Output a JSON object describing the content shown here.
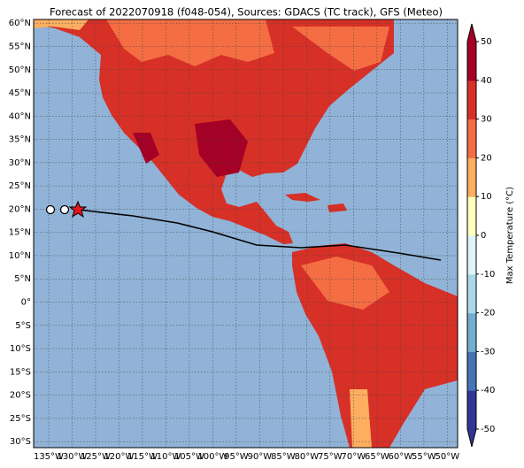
{
  "chart_data": {
    "type": "map",
    "title": "Forecast of 2022070918 (f048-054), Sources: GDACS (TC track), GFS (Meteo)",
    "xlim": [
      -138.2,
      -47.8
    ],
    "ylim": [
      -31.3,
      60.8
    ],
    "xticks": [
      {
        "value": -135,
        "label": "135°W"
      },
      {
        "value": -130,
        "label": "130°W"
      },
      {
        "value": -125,
        "label": "125°W"
      },
      {
        "value": -120,
        "label": "120°W"
      },
      {
        "value": -115,
        "label": "115°W"
      },
      {
        "value": -110,
        "label": "110°W"
      },
      {
        "value": -105,
        "label": "105°W"
      },
      {
        "value": -100,
        "label": "100°W"
      },
      {
        "value": -95,
        "label": "95°W"
      },
      {
        "value": -90,
        "label": "90°W"
      },
      {
        "value": -85,
        "label": "85°W"
      },
      {
        "value": -80,
        "label": "80°W"
      },
      {
        "value": -75,
        "label": "75°W"
      },
      {
        "value": -70,
        "label": "70°W"
      },
      {
        "value": -65,
        "label": "65°W"
      },
      {
        "value": -60,
        "label": "60°W"
      },
      {
        "value": -55,
        "label": "55°W"
      },
      {
        "value": -50,
        "label": "50°W"
      }
    ],
    "yticks": [
      {
        "value": 60,
        "label": "60°N"
      },
      {
        "value": 55,
        "label": "55°N"
      },
      {
        "value": 50,
        "label": "50°N"
      },
      {
        "value": 45,
        "label": "45°N"
      },
      {
        "value": 40,
        "label": "40°N"
      },
      {
        "value": 35,
        "label": "35°N"
      },
      {
        "value": 30,
        "label": "30°N"
      },
      {
        "value": 25,
        "label": "25°N"
      },
      {
        "value": 20,
        "label": "20°N"
      },
      {
        "value": 15,
        "label": "15°N"
      },
      {
        "value": 10,
        "label": "10°N"
      },
      {
        "value": 5,
        "label": "5°N"
      },
      {
        "value": 0,
        "label": "0°"
      },
      {
        "value": -5,
        "label": "5°S"
      },
      {
        "value": -10,
        "label": "10°S"
      },
      {
        "value": -15,
        "label": "15°S"
      },
      {
        "value": -20,
        "label": "20°S"
      },
      {
        "value": -25,
        "label": "25°S"
      },
      {
        "value": -30,
        "label": "30°S"
      }
    ],
    "grid": true,
    "colorbar": {
      "label": "Max Temperature (°C)",
      "lim": [
        -50,
        50
      ],
      "ticks": [
        -50,
        -40,
        -30,
        -20,
        -10,
        0,
        10,
        20,
        30,
        40,
        50
      ],
      "colors": [
        "#313695",
        "#4575b4",
        "#74add1",
        "#abd9e9",
        "#e0f3f8",
        "#ffffbf",
        "#fdae61",
        "#f46d43",
        "#d73027",
        "#a50026"
      ]
    }
  }
}
